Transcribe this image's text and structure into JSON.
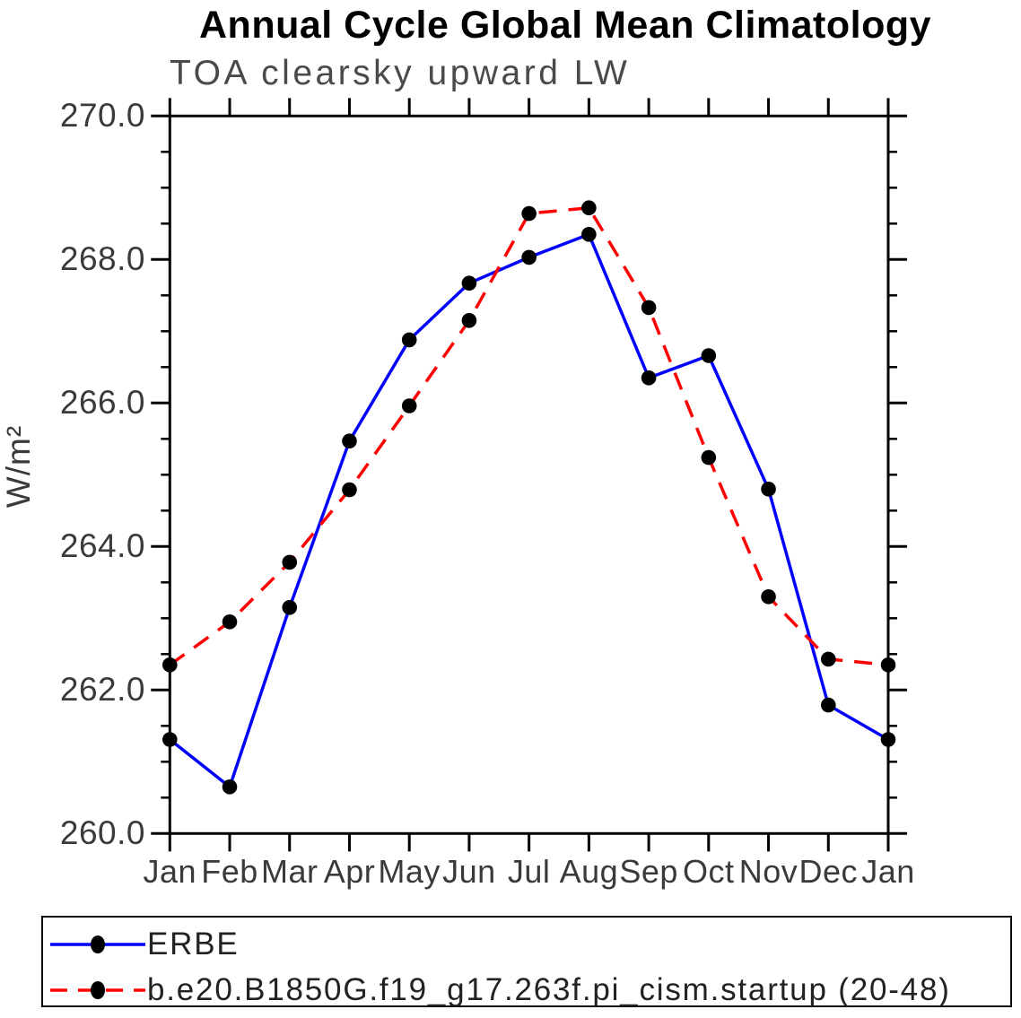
{
  "colors": {
    "erbe_line": "#0000ff",
    "model_line": "#ff0000",
    "marker": "#000000",
    "axis": "#000000",
    "title_text": "#000000",
    "subtitle_text": "#4a4a4a",
    "tick_label_text": "#3a3a3a",
    "legend_text": "#222222",
    "background": "#ffffff"
  },
  "chart_data": {
    "type": "line",
    "title": "Annual Cycle Global Mean Climatology",
    "subtitle": "TOA clearsky upward LW",
    "xlabel": "",
    "ylabel": "W/m²",
    "x_labels": [
      "Jan",
      "Feb",
      "Mar",
      "Apr",
      "May",
      "Jun",
      "Jul",
      "Aug",
      "Sep",
      "Oct",
      "Nov",
      "Dec",
      "Jan"
    ],
    "ylim": [
      260.0,
      270.0
    ],
    "y_ticks": [
      "270.0",
      "268.0",
      "266.0",
      "264.0",
      "262.0",
      "260.0"
    ],
    "y_major_tick_step": 2.0,
    "y_minor_tick_step": 0.5,
    "grid": false,
    "legend_position": "bottom",
    "series": [
      {
        "name": "ERBE",
        "color": "#0000ff",
        "line_style": "solid",
        "marker": "circle",
        "marker_color": "#000000",
        "values": [
          261.31,
          260.65,
          263.15,
          265.47,
          266.88,
          267.67,
          268.03,
          268.35,
          266.35,
          266.66,
          264.8,
          261.79,
          261.31
        ]
      },
      {
        "name": "b.e20.B1850G.f19_g17.263f.pi_cism.startup (20-48)",
        "color": "#ff0000",
        "line_style": "dashed",
        "marker": "circle",
        "marker_color": "#000000",
        "values": [
          262.35,
          262.95,
          263.78,
          264.79,
          265.96,
          267.15,
          268.64,
          268.72,
          267.33,
          265.24,
          263.3,
          262.43,
          262.35
        ]
      }
    ]
  }
}
